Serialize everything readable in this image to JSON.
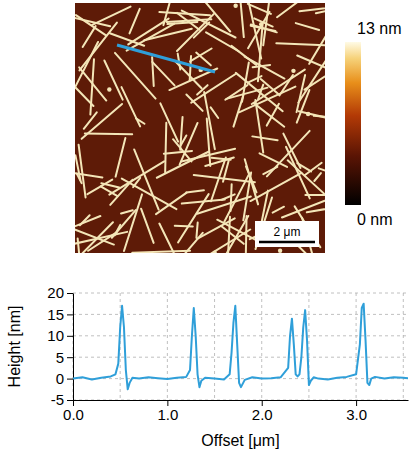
{
  "chart_data": {
    "type": "line",
    "x_label": "Offset [μm]",
    "y_label": "Height [nm]",
    "x": [
      0,
      0.1,
      0.2,
      0.3,
      0.4,
      0.45,
      0.48,
      0.5,
      0.52,
      0.54,
      0.56,
      0.58,
      0.6,
      0.63,
      0.7,
      0.8,
      0.9,
      1.0,
      1.1,
      1.2,
      1.24,
      1.26,
      1.28,
      1.3,
      1.32,
      1.34,
      1.36,
      1.4,
      1.5,
      1.6,
      1.66,
      1.68,
      1.7,
      1.72,
      1.74,
      1.76,
      1.78,
      1.82,
      1.9,
      2.0,
      2.1,
      2.2,
      2.28,
      2.3,
      2.32,
      2.34,
      2.36,
      2.38,
      2.4,
      2.42,
      2.44,
      2.46,
      2.48,
      2.5,
      2.52,
      2.55,
      2.6,
      2.7,
      2.8,
      2.9,
      3.0,
      3.04,
      3.06,
      3.08,
      3.1,
      3.12,
      3.14,
      3.16,
      3.2,
      3.3,
      3.4,
      3.5,
      3.55
    ],
    "values": [
      0,
      0.3,
      -0.2,
      0.2,
      0.5,
      1.0,
      3.5,
      12,
      17,
      12,
      2,
      -2.5,
      -1,
      0.2,
      0,
      0.3,
      0.1,
      -0.1,
      0.2,
      0.4,
      2,
      10,
      16.5,
      10,
      1,
      -2,
      -0.5,
      0.2,
      0,
      -0.2,
      1,
      6,
      13,
      17,
      8,
      -1,
      -2,
      -0.3,
      0.3,
      0,
      0.1,
      0.3,
      2.5,
      10,
      14,
      8,
      1,
      0.5,
      1,
      5,
      12,
      16,
      9,
      -1.5,
      -0.5,
      0.3,
      0,
      -0.2,
      0.2,
      0.4,
      1,
      8,
      16.5,
      17.5,
      9,
      -1,
      -1.5,
      0,
      0.4,
      0,
      0.3,
      0.2,
      0.1
    ],
    "color": "#2f9fd9",
    "xlim": [
      0,
      3.55
    ],
    "ylim": [
      -5,
      20
    ],
    "xticks": [
      {
        "value": 0,
        "label": "0.0"
      },
      {
        "value": 1,
        "label": "1.0"
      },
      {
        "value": 2,
        "label": "2.0"
      },
      {
        "value": 3,
        "label": "3.0"
      }
    ],
    "x_minor_ticks": [
      0.5,
      1.5,
      2.5,
      3.5
    ],
    "yticks": [
      -5,
      0,
      5,
      10,
      15,
      20
    ],
    "grid": true
  },
  "afm_image": {
    "colorbar": {
      "range": [
        0,
        13
      ],
      "ticks": [
        {
          "value": 13,
          "label": "13 nm"
        },
        {
          "value": 0,
          "label": "0 nm"
        }
      ]
    },
    "scale_bar": {
      "value": 2,
      "label": "2 μm"
    }
  }
}
